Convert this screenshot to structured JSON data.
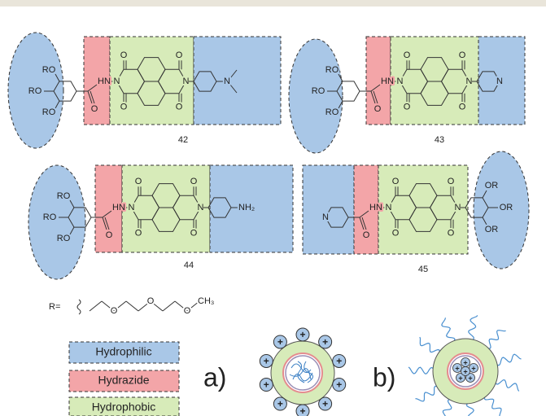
{
  "molecules": [
    {
      "label": "42",
      "atoms": [
        "RO",
        "RO",
        "RO",
        "O",
        "HN",
        "N",
        "O",
        "O",
        "O",
        "O",
        "N",
        "N"
      ]
    },
    {
      "label": "43",
      "atoms": [
        "RO",
        "RO",
        "RO",
        "O",
        "HN",
        "N",
        "O",
        "O",
        "O",
        "O",
        "N",
        "N"
      ]
    },
    {
      "label": "44",
      "atoms": [
        "RO",
        "RO",
        "RO",
        "O",
        "HN",
        "N",
        "O",
        "O",
        "O",
        "O",
        "N",
        "NH₂"
      ]
    },
    {
      "label": "45",
      "atoms": [
        "N",
        "O",
        "HN",
        "N",
        "O",
        "O",
        "O",
        "O",
        "N",
        "OR",
        "OR",
        "OR"
      ]
    }
  ],
  "r_group": {
    "prefix": "R=",
    "atoms": [
      "O",
      "O",
      "O",
      "CH₃"
    ]
  },
  "legend": [
    "Hydrophilic",
    "Hydrazide",
    "Hydrophobic"
  ],
  "panels": [
    "a)",
    "b)"
  ],
  "charge": "+"
}
